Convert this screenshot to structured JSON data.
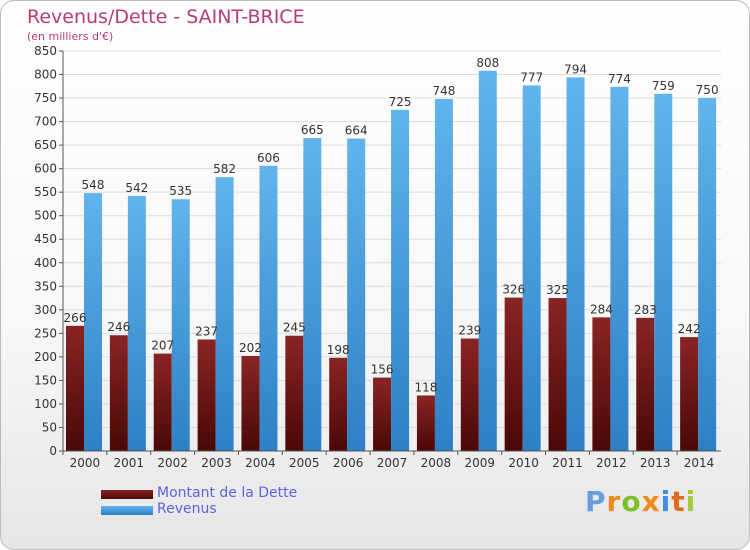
{
  "title": "Revenus/Dette - SAINT-BRICE",
  "subtitle": "(en milliers d'€)",
  "logo": {
    "text": "Proxiti",
    "letter_colors": [
      "#6a9de0",
      "#f08a1a",
      "#7fbf2a",
      "#f08a1a",
      "#3f8fe0",
      "#e06a1a",
      "#a7c93a"
    ]
  },
  "colors": {
    "dette": "#7a1818",
    "dette_dark": "#4a0808",
    "revenus": "#5aaee8",
    "revenus_dark": "#2e7fc4",
    "grid": "#dcdcdc",
    "axis_text": "#333333"
  },
  "chart_data": {
    "type": "bar",
    "title": "Revenus/Dette - SAINT-BRICE",
    "subtitle": "(en milliers d'€)",
    "xlabel": "",
    "ylabel": "",
    "ylim": [
      0,
      850
    ],
    "ytick_step": 50,
    "grid": true,
    "legend_position": "bottom-left",
    "categories": [
      "2000",
      "2001",
      "2002",
      "2003",
      "2004",
      "2005",
      "2006",
      "2007",
      "2008",
      "2009",
      "2010",
      "2011",
      "2012",
      "2013",
      "2014"
    ],
    "series": [
      {
        "name": "Montant de la Dette",
        "color": "#7a1818",
        "values": [
          266,
          246,
          207,
          237,
          202,
          245,
          198,
          156,
          118,
          239,
          326,
          325,
          284,
          283,
          242
        ]
      },
      {
        "name": "Revenus",
        "color": "#5aaee8",
        "values": [
          548,
          542,
          535,
          582,
          606,
          665,
          664,
          725,
          748,
          808,
          777,
          794,
          774,
          759,
          750
        ]
      }
    ]
  }
}
